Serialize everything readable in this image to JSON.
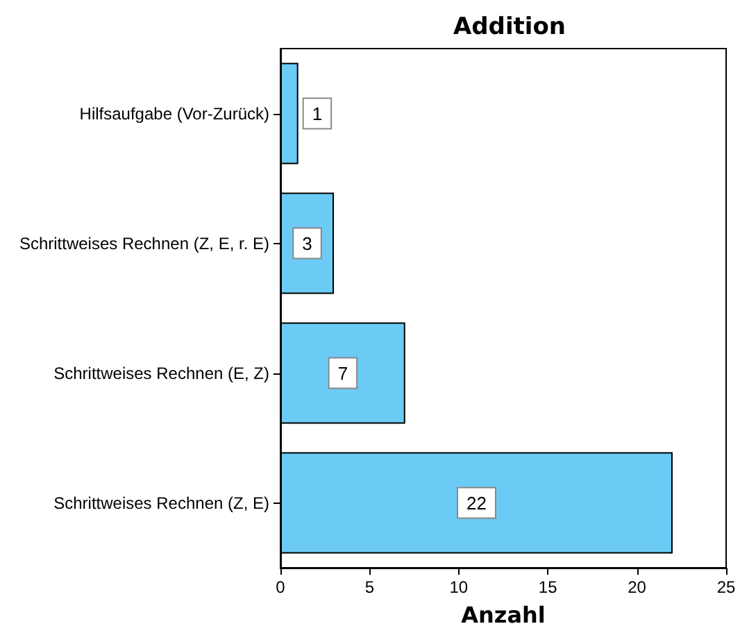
{
  "chart_data": {
    "type": "bar",
    "orientation": "horizontal",
    "title": "Addition",
    "xlabel": "Anzahl",
    "categories": [
      "Hilfsaufgabe (Vor-Zurück)",
      "Schrittweises Rechnen (Z, E, r. E)",
      "Schrittweises Rechnen (E, Z)",
      "Schrittweises Rechnen (Z, E)"
    ],
    "values": [
      1,
      3,
      7,
      22
    ],
    "color": "#6ccbf5",
    "xlim": [
      0,
      25
    ],
    "xticks": [
      0,
      5,
      10,
      15,
      20,
      25
    ],
    "grid": false,
    "data_labels": true
  }
}
